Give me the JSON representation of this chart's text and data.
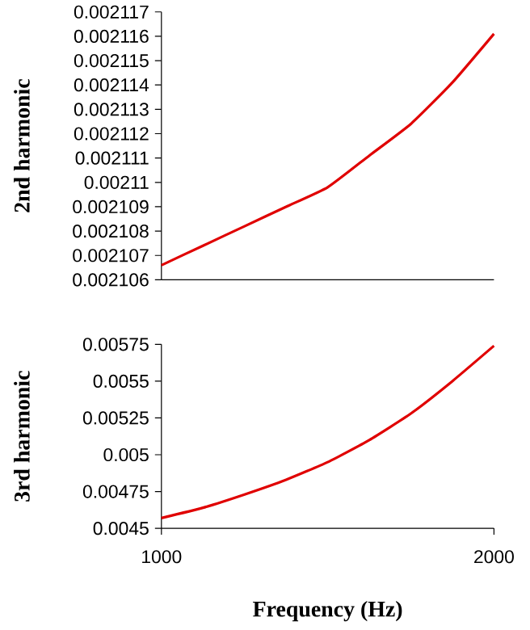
{
  "chart_data": [
    {
      "type": "line",
      "ylabel": "2nd harmonic",
      "x": [
        1000,
        1125,
        1250,
        1375,
        1500,
        1625,
        1750,
        1875,
        2000
      ],
      "values": [
        0.0021066,
        0.0021074,
        0.0021082,
        0.002109,
        0.0021098,
        0.0021111,
        0.0021124,
        0.0021141,
        0.0021161
      ],
      "color": "#e00000",
      "xlim": [
        1000,
        2000
      ],
      "ylim": [
        0.002106,
        0.002117
      ],
      "yticks": [
        0.002106,
        0.002107,
        0.002108,
        0.002109,
        0.00211,
        0.002111,
        0.002112,
        0.002113,
        0.002114,
        0.002115,
        0.002116,
        0.002117
      ],
      "tick_labels": "y"
    },
    {
      "type": "line",
      "ylabel": "3rd harmonic",
      "xlabel": "Frequency (Hz)",
      "x": [
        1000,
        1125,
        1250,
        1375,
        1500,
        1625,
        1750,
        1875,
        2000
      ],
      "values": [
        0.00457,
        0.00464,
        0.00473,
        0.00483,
        0.00495,
        0.0051,
        0.00528,
        0.0055,
        0.00574
      ],
      "color": "#e00000",
      "xlim": [
        1000,
        2000
      ],
      "xticks": [
        1000,
        2000
      ],
      "ylim": [
        0.0045,
        0.00575
      ],
      "yticks": [
        0.0045,
        0.00475,
        0.005,
        0.00525,
        0.0055,
        0.00575
      ]
    }
  ]
}
